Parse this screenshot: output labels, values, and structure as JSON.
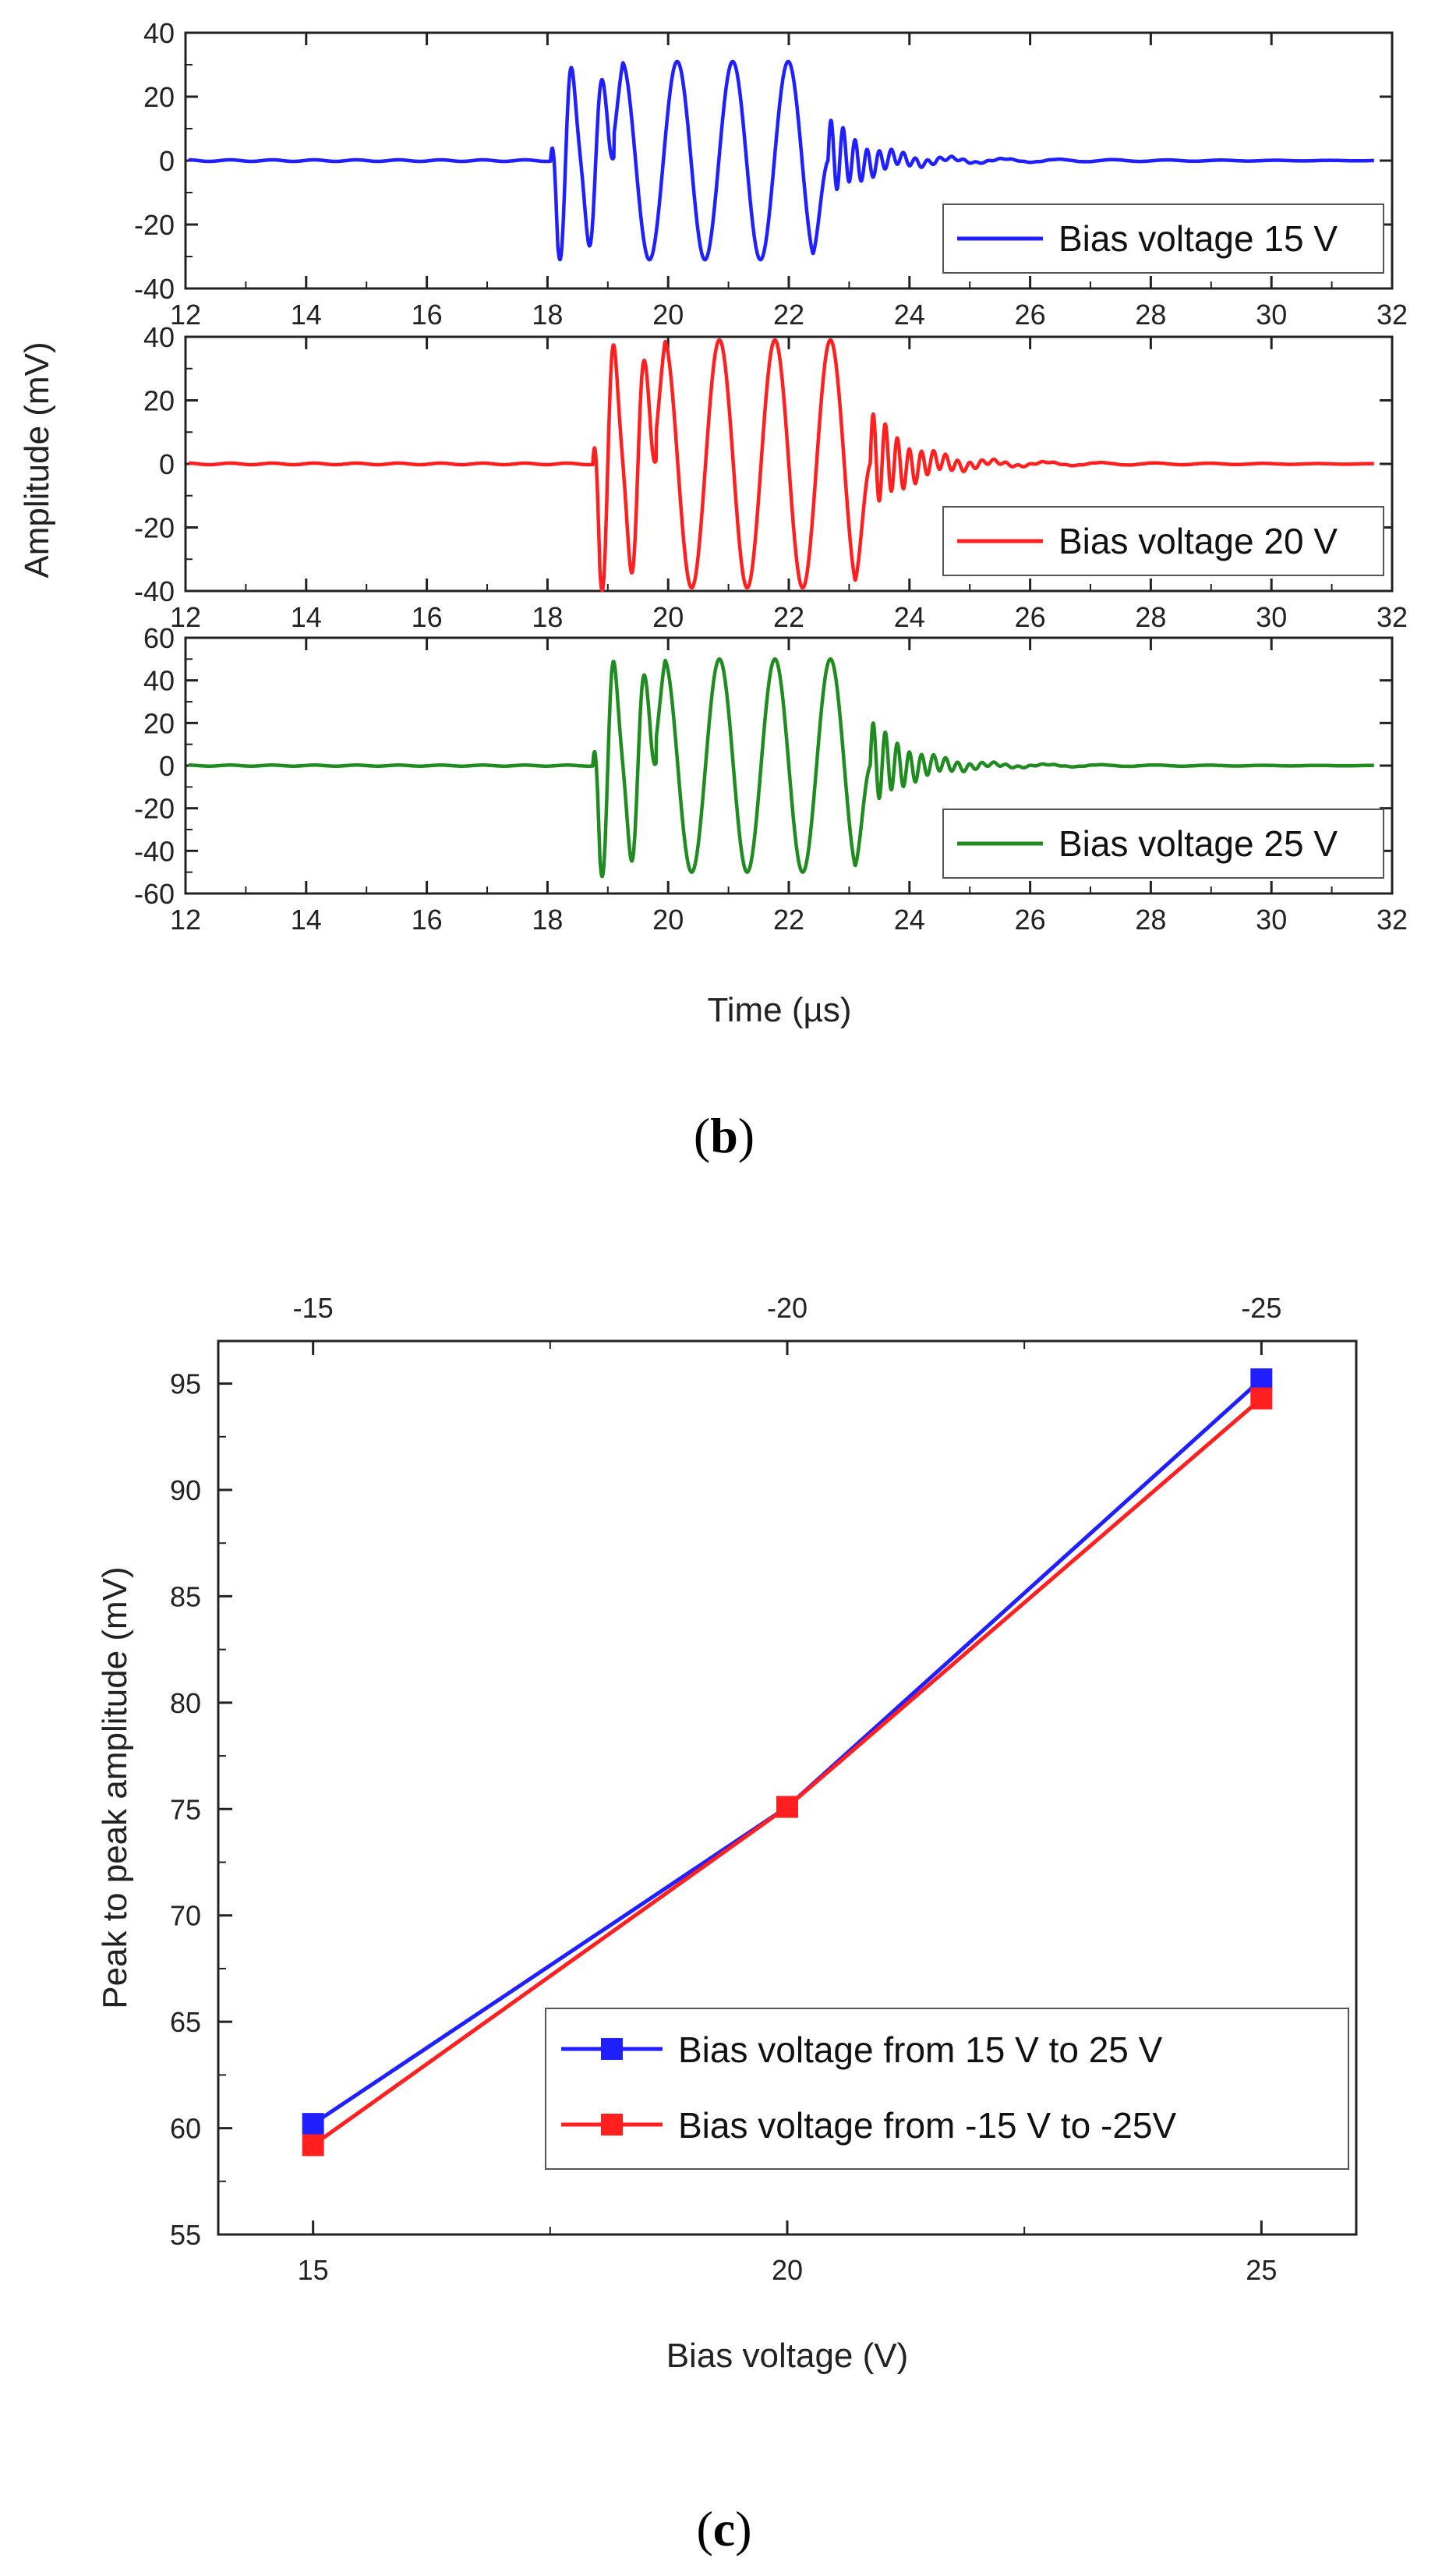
{
  "figure": {
    "panel_b_label": {
      "open": "(",
      "letter": "b",
      "close": ")"
    },
    "panel_c_label": {
      "open": "(",
      "letter": "c",
      "close": ")"
    }
  },
  "chart_data": [
    {
      "type": "line",
      "title": "",
      "xlabel": "Time (µs)",
      "ylabel": "Amplitude (mV)",
      "panels": [
        {
          "name": "Bias voltage 15 V",
          "color": "#1f1fff",
          "xlim": [
            12,
            32
          ],
          "ylim": [
            -40,
            40
          ],
          "yticks": [
            -40,
            -20,
            0,
            20,
            40
          ],
          "xticks": [
            12,
            14,
            16,
            18,
            20,
            22,
            24,
            26,
            28,
            30,
            32
          ],
          "xtick_labels": [
            "12",
            "14",
            "16",
            "18",
            "20",
            "22",
            "24",
            "26",
            "28",
            "30",
            "32"
          ],
          "signal": {
            "start": 18.05,
            "end": 31.7,
            "peak": 31,
            "p1": 28
          },
          "legend_label": "Bias voltage 15 V"
        },
        {
          "name": "Bias voltage 20 V",
          "color": "#ff1f1f",
          "xlim": [
            12,
            32
          ],
          "ylim": [
            -40,
            40
          ],
          "yticks": [
            -40,
            -20,
            0,
            20,
            40
          ],
          "xticks": [
            12,
            14,
            16,
            18,
            20,
            22,
            24,
            26,
            28,
            30,
            32
          ],
          "xtick_labels": [
            "12",
            "14",
            "16",
            "18",
            "20",
            "22",
            "24",
            "26",
            "28",
            "30",
            "32"
          ],
          "signal": {
            "start": 18.75,
            "end": 31.7,
            "peak": 39,
            "p1": 36
          },
          "legend_label": "Bias voltage 20 V"
        },
        {
          "name": "Bias voltage 25 V",
          "color": "#1f8c1f",
          "xlim": [
            12,
            32
          ],
          "ylim": [
            -60,
            60
          ],
          "yticks": [
            -60,
            -40,
            -20,
            0,
            20,
            40,
            60
          ],
          "xticks": [
            12,
            14,
            16,
            18,
            20,
            22,
            24,
            26,
            28,
            30,
            32
          ],
          "xtick_labels": [
            "12",
            "14",
            "16",
            "18",
            "20",
            "22",
            "24",
            "26",
            "28",
            "30",
            "32"
          ],
          "signal": {
            "start": 18.75,
            "end": 31.7,
            "peak": 50,
            "p1": 47
          },
          "legend_label": "Bias voltage 25 V"
        }
      ]
    },
    {
      "type": "line",
      "title": "",
      "xlabel": "Bias voltage (V)",
      "ylabel": "Peak to peak amplitude (mV)",
      "xlim": [
        14,
        26
      ],
      "ylim": [
        55,
        97
      ],
      "xticks": [
        15,
        20,
        25
      ],
      "xtick_labels": [
        "15",
        "20",
        "25"
      ],
      "top_xticks": [
        15,
        20,
        25
      ],
      "top_xtick_labels": [
        "-15",
        "-20",
        "-25"
      ],
      "yticks": [
        55,
        60,
        65,
        70,
        75,
        80,
        85,
        90,
        95
      ],
      "ytick_labels": [
        "55",
        "60",
        "65",
        "70",
        "75",
        "80",
        "85",
        "90",
        "95"
      ],
      "categories": [
        15,
        20,
        25
      ],
      "series": [
        {
          "name": "Bias voltage from 15 V to 25 V",
          "color": "#1f1fff",
          "values": [
            60.2,
            75.1,
            95.2
          ]
        },
        {
          "name": "Bias voltage from -15 V to -25V",
          "color": "#ff1f1f",
          "values": [
            59.2,
            75.1,
            94.3
          ]
        }
      ]
    }
  ]
}
